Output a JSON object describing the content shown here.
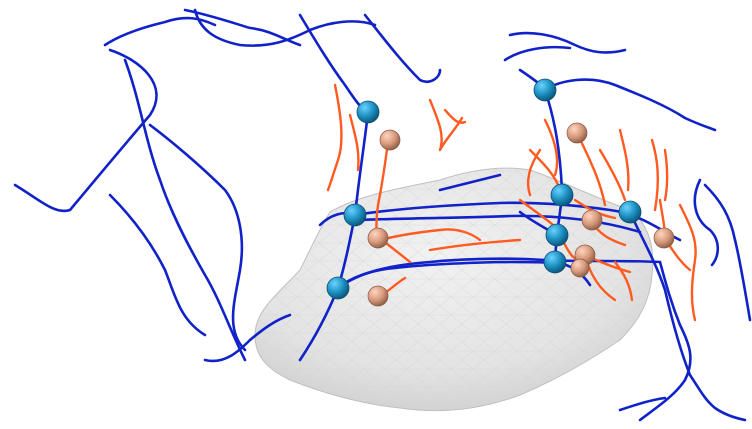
{
  "scene": {
    "background": "#ffffff",
    "colors": {
      "mesh_fill": "#e6e6e6",
      "mesh_shadow": "#c9c9c9",
      "mesh_edge": "#bdbdbd",
      "blue_curve": "#1022c8",
      "orange_curve": "#ff5a1f",
      "blue_node": "#1b8fc0",
      "orange_node": "#d79a7c"
    },
    "objects": [
      "mesh-body",
      "blue-curves",
      "orange-curves",
      "blue-nodes",
      "orange-nodes"
    ]
  }
}
